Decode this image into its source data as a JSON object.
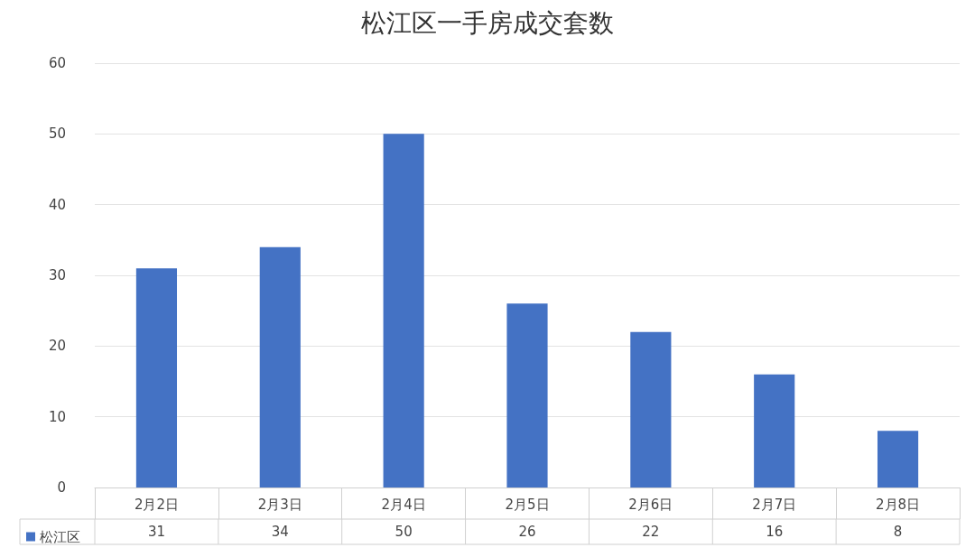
{
  "chart_data": {
    "type": "bar",
    "title": "松江区一手房成交套数",
    "categories": [
      "2月2日",
      "2月3日",
      "2月4日",
      "2月5日",
      "2月6日",
      "2月7日",
      "2月8日"
    ],
    "series": [
      {
        "name": "松江区",
        "color": "#4472c4",
        "values": [
          31,
          34,
          50,
          26,
          22,
          16,
          8
        ]
      }
    ],
    "ylim": [
      0,
      60
    ],
    "yticks": [
      0,
      10,
      20,
      30,
      40,
      50,
      60
    ],
    "grid": "y",
    "legend": "bottom left",
    "data_labels": true
  }
}
